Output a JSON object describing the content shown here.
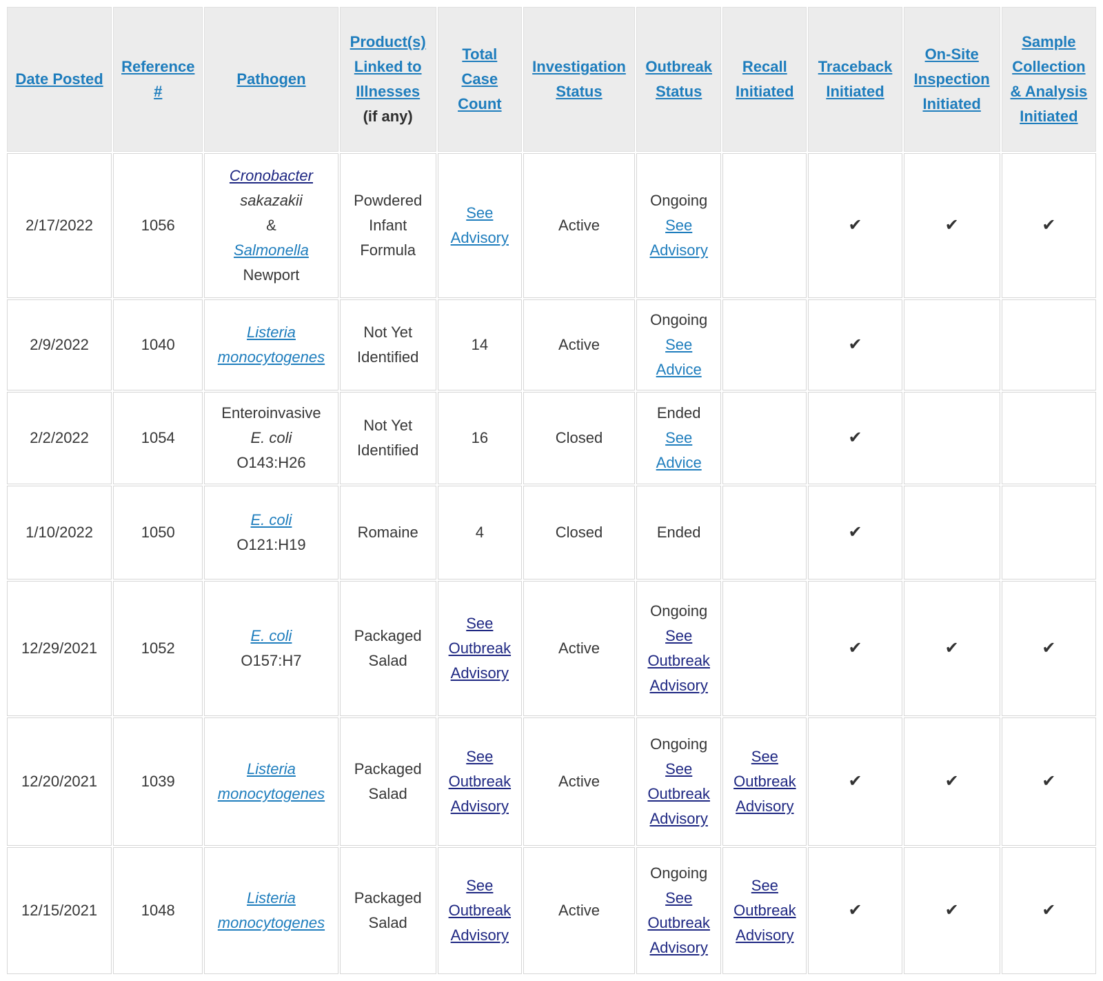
{
  "colors": {
    "header_link_blue": "#1e7dbd",
    "body_link_blue": "#1e86c7",
    "visited_link_navy": "#1e2782",
    "header_background": "#ececec",
    "cell_border": "#d6d6d6",
    "body_text": "#363636"
  },
  "icons": {
    "checkmark": "✔"
  },
  "table": {
    "columns": [
      {
        "key": "date_posted",
        "label": "Date Posted"
      },
      {
        "key": "reference",
        "label": "Reference #"
      },
      {
        "key": "pathogen",
        "label": "Pathogen"
      },
      {
        "key": "products",
        "label": "Product(s) Linked to Illnesses",
        "sublabel": "(if any)"
      },
      {
        "key": "case_count",
        "label": "Total Case Count"
      },
      {
        "key": "investigation_status",
        "label": "Investigation Status"
      },
      {
        "key": "outbreak_status",
        "label": "Outbreak Status"
      },
      {
        "key": "recall",
        "label": "Recall Initiated"
      },
      {
        "key": "traceback",
        "label": "Traceback Initiated"
      },
      {
        "key": "onsite",
        "label": "On-Site Inspection Initiated"
      },
      {
        "key": "sample",
        "label": "Sample Collection & Analysis Initiated"
      }
    ],
    "rows": [
      {
        "cells": [
          [
            {
              "text": "2/17/2022",
              "kind": "plain"
            }
          ],
          [
            {
              "text": "1056",
              "kind": "plain"
            }
          ],
          [
            {
              "text": "Cronobacter",
              "kind": "visited italic"
            },
            {
              "text": "sakazakii",
              "kind": "plain italic"
            },
            {
              "text": "&",
              "kind": "plain"
            },
            {
              "text": "Salmonella",
              "kind": "link italic"
            },
            {
              "text": "Newport",
              "kind": "plain"
            }
          ],
          [
            {
              "text": "Powdered Infant Formula",
              "kind": "plain"
            }
          ],
          [
            {
              "text": "See Advisory",
              "kind": "link"
            }
          ],
          [
            {
              "text": "Active",
              "kind": "plain"
            }
          ],
          [
            {
              "text": "Ongoing",
              "kind": "plain"
            },
            {
              "text": "See Advisory",
              "kind": "link"
            }
          ],
          [],
          [
            {
              "text": "✔",
              "kind": "check"
            }
          ],
          [
            {
              "text": "✔",
              "kind": "check"
            }
          ],
          [
            {
              "text": "✔",
              "kind": "check"
            }
          ]
        ]
      },
      {
        "cells": [
          [
            {
              "text": "2/9/2022",
              "kind": "plain"
            }
          ],
          [
            {
              "text": "1040",
              "kind": "plain"
            }
          ],
          [
            {
              "text": "Listeria monocytogenes",
              "kind": "link italic"
            }
          ],
          [
            {
              "text": "Not Yet Identified",
              "kind": "plain"
            }
          ],
          [
            {
              "text": "14",
              "kind": "plain"
            }
          ],
          [
            {
              "text": "Active",
              "kind": "plain"
            }
          ],
          [
            {
              "text": "Ongoing",
              "kind": "plain"
            },
            {
              "text": "See Advice",
              "kind": "link"
            }
          ],
          [],
          [
            {
              "text": "✔",
              "kind": "check"
            }
          ],
          [],
          []
        ]
      },
      {
        "cells": [
          [
            {
              "text": "2/2/2022",
              "kind": "plain"
            }
          ],
          [
            {
              "text": "1054",
              "kind": "plain"
            }
          ],
          [
            {
              "text": "Enteroinvasive",
              "kind": "plain"
            },
            {
              "text": "E. coli",
              "kind": "plain italic"
            },
            {
              "text": "O143:H26",
              "kind": "plain"
            }
          ],
          [
            {
              "text": "Not Yet Identified",
              "kind": "plain"
            }
          ],
          [
            {
              "text": "16",
              "kind": "plain"
            }
          ],
          [
            {
              "text": "Closed",
              "kind": "plain"
            }
          ],
          [
            {
              "text": "Ended",
              "kind": "plain"
            },
            {
              "text": "See Advice",
              "kind": "link"
            }
          ],
          [],
          [
            {
              "text": "✔",
              "kind": "check"
            }
          ],
          [],
          []
        ]
      },
      {
        "cells": [
          [
            {
              "text": "1/10/2022",
              "kind": "plain"
            }
          ],
          [
            {
              "text": "1050",
              "kind": "plain"
            }
          ],
          [
            {
              "text": "E. coli",
              "kind": "link italic"
            },
            {
              "text": "O121:H19",
              "kind": "plain"
            }
          ],
          [
            {
              "text": "Romaine",
              "kind": "plain"
            }
          ],
          [
            {
              "text": "4",
              "kind": "plain"
            }
          ],
          [
            {
              "text": "Closed",
              "kind": "plain"
            }
          ],
          [
            {
              "text": "Ended",
              "kind": "plain"
            }
          ],
          [],
          [
            {
              "text": "✔",
              "kind": "check"
            }
          ],
          [],
          []
        ]
      },
      {
        "cells": [
          [
            {
              "text": "12/29/2021",
              "kind": "plain"
            }
          ],
          [
            {
              "text": "1052",
              "kind": "plain"
            }
          ],
          [
            {
              "text": "E. coli",
              "kind": "link italic"
            },
            {
              "text": "O157:H7",
              "kind": "plain"
            }
          ],
          [
            {
              "text": "Packaged Salad",
              "kind": "plain"
            }
          ],
          [
            {
              "text": "See Outbreak Advisory",
              "kind": "visited"
            }
          ],
          [
            {
              "text": "Active",
              "kind": "plain"
            }
          ],
          [
            {
              "text": "Ongoing",
              "kind": "plain"
            },
            {
              "text": "See Outbreak Advisory",
              "kind": "visited"
            }
          ],
          [],
          [
            {
              "text": "✔",
              "kind": "check"
            }
          ],
          [
            {
              "text": "✔",
              "kind": "check"
            }
          ],
          [
            {
              "text": "✔",
              "kind": "check"
            }
          ]
        ]
      },
      {
        "cells": [
          [
            {
              "text": "12/20/2021",
              "kind": "plain"
            }
          ],
          [
            {
              "text": "1039",
              "kind": "plain"
            }
          ],
          [
            {
              "text": "Listeria monocytogenes",
              "kind": "link italic"
            }
          ],
          [
            {
              "text": "Packaged Salad",
              "kind": "plain"
            }
          ],
          [
            {
              "text": "See Outbreak Advisory",
              "kind": "visited"
            }
          ],
          [
            {
              "text": "Active",
              "kind": "plain"
            }
          ],
          [
            {
              "text": "Ongoing",
              "kind": "plain"
            },
            {
              "text": "See Outbreak Advisory",
              "kind": "visited"
            }
          ],
          [
            {
              "text": "See Outbreak Advisory",
              "kind": "visited"
            }
          ],
          [
            {
              "text": "✔",
              "kind": "check"
            }
          ],
          [
            {
              "text": "✔",
              "kind": "check"
            }
          ],
          [
            {
              "text": "✔",
              "kind": "check"
            }
          ]
        ]
      },
      {
        "cells": [
          [
            {
              "text": "12/15/2021",
              "kind": "plain"
            }
          ],
          [
            {
              "text": "1048",
              "kind": "plain"
            }
          ],
          [
            {
              "text": "Listeria monocytogenes",
              "kind": "link italic"
            }
          ],
          [
            {
              "text": "Packaged Salad",
              "kind": "plain"
            }
          ],
          [
            {
              "text": "See Outbreak Advisory",
              "kind": "visited"
            }
          ],
          [
            {
              "text": "Active",
              "kind": "plain"
            }
          ],
          [
            {
              "text": "Ongoing",
              "kind": "plain"
            },
            {
              "text": "See Outbreak Advisory",
              "kind": "visited"
            }
          ],
          [
            {
              "text": "See Outbreak Advisory",
              "kind": "visited"
            }
          ],
          [
            {
              "text": "✔",
              "kind": "check"
            }
          ],
          [
            {
              "text": "✔",
              "kind": "check"
            }
          ],
          [
            {
              "text": "✔",
              "kind": "check"
            }
          ]
        ]
      }
    ]
  }
}
